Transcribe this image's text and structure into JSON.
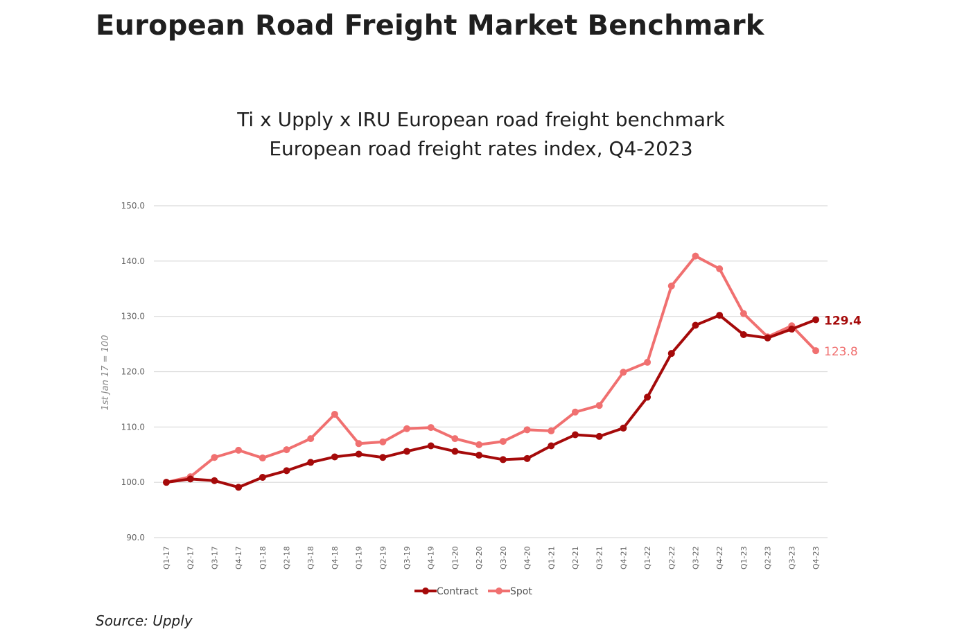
{
  "page": {
    "title": "European Road Freight Market Benchmark",
    "source": "Source: Upply"
  },
  "chart_data": {
    "type": "line",
    "title": "Ti x Upply x IRU European road freight benchmark",
    "subtitle": "European road freight rates index, Q4-2023",
    "xlabel": "",
    "ylabel": "1st Jan 17 = 100",
    "ylim": [
      90,
      150
    ],
    "yticks": [
      "90.0",
      "100.0",
      "110.0",
      "120.0",
      "130.0",
      "140.0",
      "150.0"
    ],
    "grid": true,
    "legend": "bottom",
    "categories": [
      "Q1-17",
      "Q2-17",
      "Q3-17",
      "Q4-17",
      "Q1-18",
      "Q2-18",
      "Q3-18",
      "Q4-18",
      "Q1-19",
      "Q2-19",
      "Q3-19",
      "Q4-19",
      "Q1-20",
      "Q2-20",
      "Q3-20",
      "Q4-20",
      "Q1-21",
      "Q2-21",
      "Q3-21",
      "Q4-21",
      "Q1-22",
      "Q2-22",
      "Q3-22",
      "Q4-22",
      "Q1-23",
      "Q2-23",
      "Q3-23",
      "Q4-23"
    ],
    "series": [
      {
        "name": "Contract",
        "color": "#a50a0a",
        "values": [
          100.0,
          100.6,
          100.3,
          99.1,
          100.9,
          102.1,
          103.6,
          104.6,
          105.1,
          104.5,
          105.6,
          106.6,
          105.6,
          104.9,
          104.1,
          104.3,
          106.6,
          108.6,
          108.3,
          109.8,
          115.4,
          123.3,
          128.4,
          130.2,
          126.7,
          126.1,
          127.7,
          129.4
        ],
        "end_label": "129.4"
      },
      {
        "name": "Spot",
        "color": "#f07070",
        "values": [
          100.0,
          101.0,
          104.5,
          105.8,
          104.4,
          105.9,
          107.9,
          112.3,
          107.0,
          107.3,
          109.7,
          109.9,
          107.9,
          106.8,
          107.4,
          109.5,
          109.3,
          112.7,
          113.9,
          119.9,
          121.7,
          135.5,
          140.9,
          138.6,
          130.5,
          126.3,
          128.3,
          123.8
        ],
        "end_label": "123.8"
      }
    ]
  }
}
